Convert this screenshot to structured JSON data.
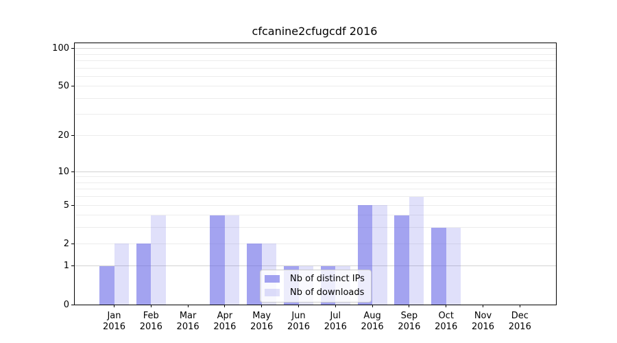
{
  "chart_data": {
    "type": "bar",
    "title": "cfcanine2cfugcdf 2016",
    "categories": [
      "Jan",
      "Feb",
      "Mar",
      "Apr",
      "May",
      "Jun",
      "Jul",
      "Aug",
      "Sep",
      "Oct",
      "Nov",
      "Dec"
    ],
    "year_label": "2016",
    "series": [
      {
        "name": "Nb of distinct IPs",
        "color": "rgba(102,102,230,0.60)",
        "values": [
          1,
          2,
          0,
          4,
          2,
          1,
          1,
          5,
          4,
          3,
          0,
          0
        ]
      },
      {
        "name": "Nb of downloads",
        "color": "rgba(102,102,230,0.20)",
        "values": [
          2,
          4,
          0,
          4,
          2,
          1,
          1,
          5,
          6,
          3,
          0,
          0
        ]
      }
    ],
    "y_ticks": [
      0,
      1,
      2,
      5,
      10,
      20,
      50,
      100
    ],
    "ylim": [
      0,
      100
    ],
    "y_scale": "quasi-log: position proportional to log10(1+v)",
    "grid": true,
    "legend_position": "lower center"
  },
  "colors": {
    "grid_minor": "#ececec",
    "grid_major": "#d2d2d2",
    "axis": "#000000",
    "legend_border": "#cccccc",
    "legend_background": "rgba(255,255,255,0.8)"
  }
}
